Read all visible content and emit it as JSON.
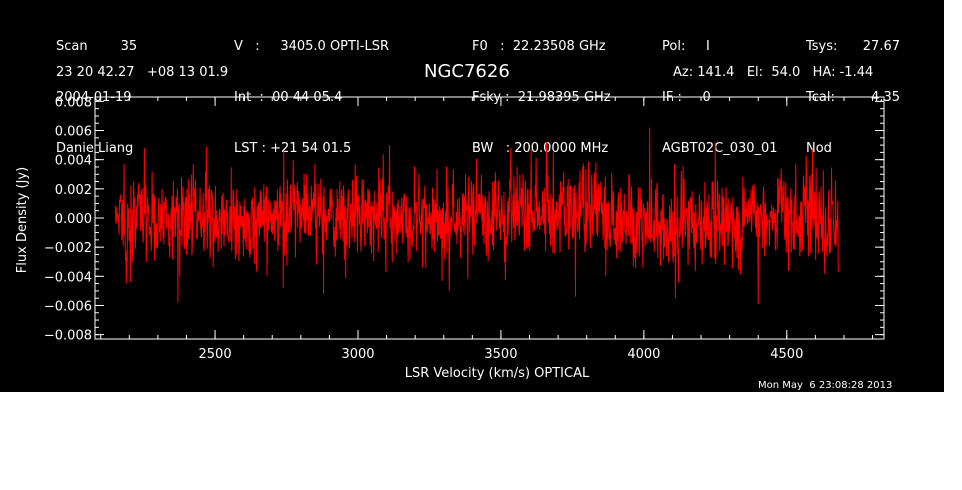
{
  "header": {
    "col1": [
      "Scan        35",
      "2004-01-19",
      "Danie Liang"
    ],
    "col2": [
      "V   :     3405.0 OPTI-LSR",
      "Int  :  00 44 05.4",
      "LST : +21 54 01.5"
    ],
    "col3": [
      "F0   :  22.23508 GHz",
      "Fsky :  21.98395 GHz",
      "BW   : 200.0000 MHz"
    ],
    "col4": [
      "Pol:     I",
      "IF :     0",
      "AGBT02C_030_01"
    ],
    "col5": [
      "Tsys:",
      "Tcal:",
      "Nod"
    ],
    "col6": [
      "27.67",
      "4.35",
      ""
    ],
    "coords": "23 20 42.27   +08 13 01.9",
    "object": "NGC7626",
    "pointing": "Az: 141.4   El:  54.0   HA: -1.44"
  },
  "timestamp": "Mon May  6 23:08:28 2013",
  "colors": {
    "background": "#000000",
    "foreground": "#ffffff",
    "series": "#ff0000"
  },
  "chart_data": {
    "type": "line",
    "title": "NGC7626",
    "xlabel": "LSR Velocity (km/s) OPTICAL",
    "ylabel": "Flux Density (Jy)",
    "xlim": [
      2080,
      4840
    ],
    "ylim": [
      -0.0083,
      0.0083
    ],
    "xticks": [
      2500,
      3000,
      3500,
      4000,
      4500
    ],
    "xtick_labels": [
      "2500",
      "3000",
      "3500",
      "4000",
      "4500"
    ],
    "yticks": [
      0.008,
      0.006,
      0.004,
      0.002,
      0.0,
      -0.002,
      -0.004,
      -0.006,
      -0.008
    ],
    "ytick_labels": [
      "0.008",
      "0.006",
      "0.004",
      "0.002",
      "0.000",
      "−0.002",
      "−0.004",
      "−0.006",
      "−0.008"
    ],
    "x_minor_step": 100,
    "y_minor_step": 0.0005,
    "series": [
      {
        "color": "#ff0000",
        "x_range": [
          2150,
          4680
        ],
        "n_points": 1600,
        "noise_rms": 0.0015,
        "baseline": 0.0,
        "peaks": [
          {
            "x": 4020,
            "y": 0.0062
          },
          {
            "x": 3110,
            "y": 0.005
          },
          {
            "x": 2470,
            "y": 0.0049
          },
          {
            "x": 3660,
            "y": 0.0052
          },
          {
            "x": 4590,
            "y": 0.0047
          },
          {
            "x": 2740,
            "y": 0.0046
          },
          {
            "x": 4250,
            "y": 0.0052
          }
        ],
        "troughs": [
          {
            "x": 2370,
            "y": -0.0058
          },
          {
            "x": 4400,
            "y": -0.0059
          },
          {
            "x": 4110,
            "y": -0.0055
          },
          {
            "x": 2880,
            "y": -0.0052
          },
          {
            "x": 3760,
            "y": -0.0054
          },
          {
            "x": 3320,
            "y": -0.005
          },
          {
            "x": 2190,
            "y": -0.0045
          }
        ]
      }
    ]
  }
}
